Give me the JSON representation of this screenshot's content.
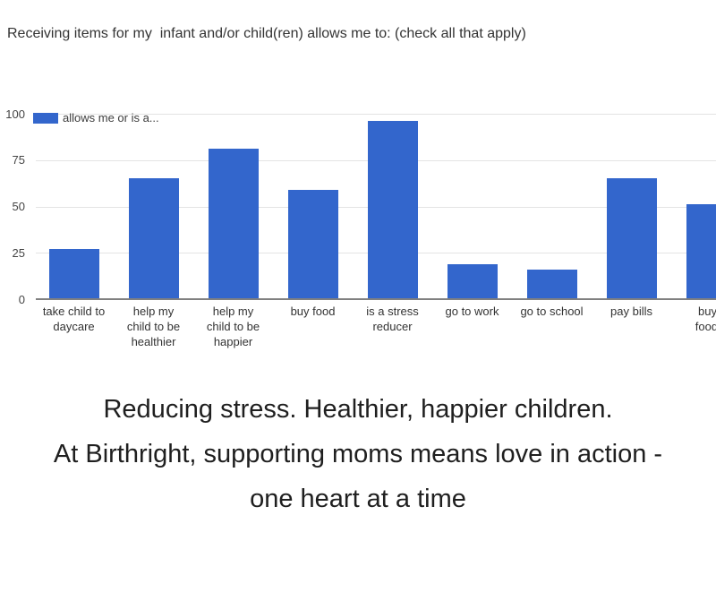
{
  "page": {
    "background": "#ffffff"
  },
  "chart": {
    "title": "Receiving items for my  infant and/or child(ren) allows me to: (check all that apply)",
    "legend": {
      "label": "allows me or is a...",
      "swatch_color": "#3366cc"
    }
  },
  "chart_data": {
    "type": "bar",
    "title": "Receiving items for my  infant and/or child(ren) allows me to: (check all that apply)",
    "legend_entries": [
      "allows me or is a..."
    ],
    "legend_position": "top-left",
    "grid": true,
    "ylim": [
      0,
      100
    ],
    "y_ticks": [
      0,
      25,
      50,
      75,
      100
    ],
    "categories": [
      "take child to daycare",
      "help my child to be healthier",
      "help my child to be happier",
      "buy food",
      "is a stress reducer",
      "go to work",
      "go to school",
      "pay bills",
      "buy r… food it…"
    ],
    "categories_display": [
      "take child to\ndaycare",
      "help my\nchild to be\nhealthier",
      "help my\nchild to be\nhappier",
      "buy food",
      "is a stress\nreducer",
      "go to work",
      "go to school",
      "pay bills",
      "buy r\nfood it"
    ],
    "values": [
      27,
      65,
      81,
      59,
      96,
      19,
      16,
      65,
      51
    ],
    "bar_color": "#3366cc"
  },
  "colors": {
    "bar": "#3366cc",
    "gridline": "#e3e3e3",
    "baseline": "#808080",
    "axis_text": "#444444",
    "title_text": "#333333",
    "caption_text": "#1f1f1f"
  },
  "caption": {
    "text": "Reducing stress. Healthier, happier children.\nAt Birthright, supporting moms means love in action -\none heart at a time"
  }
}
